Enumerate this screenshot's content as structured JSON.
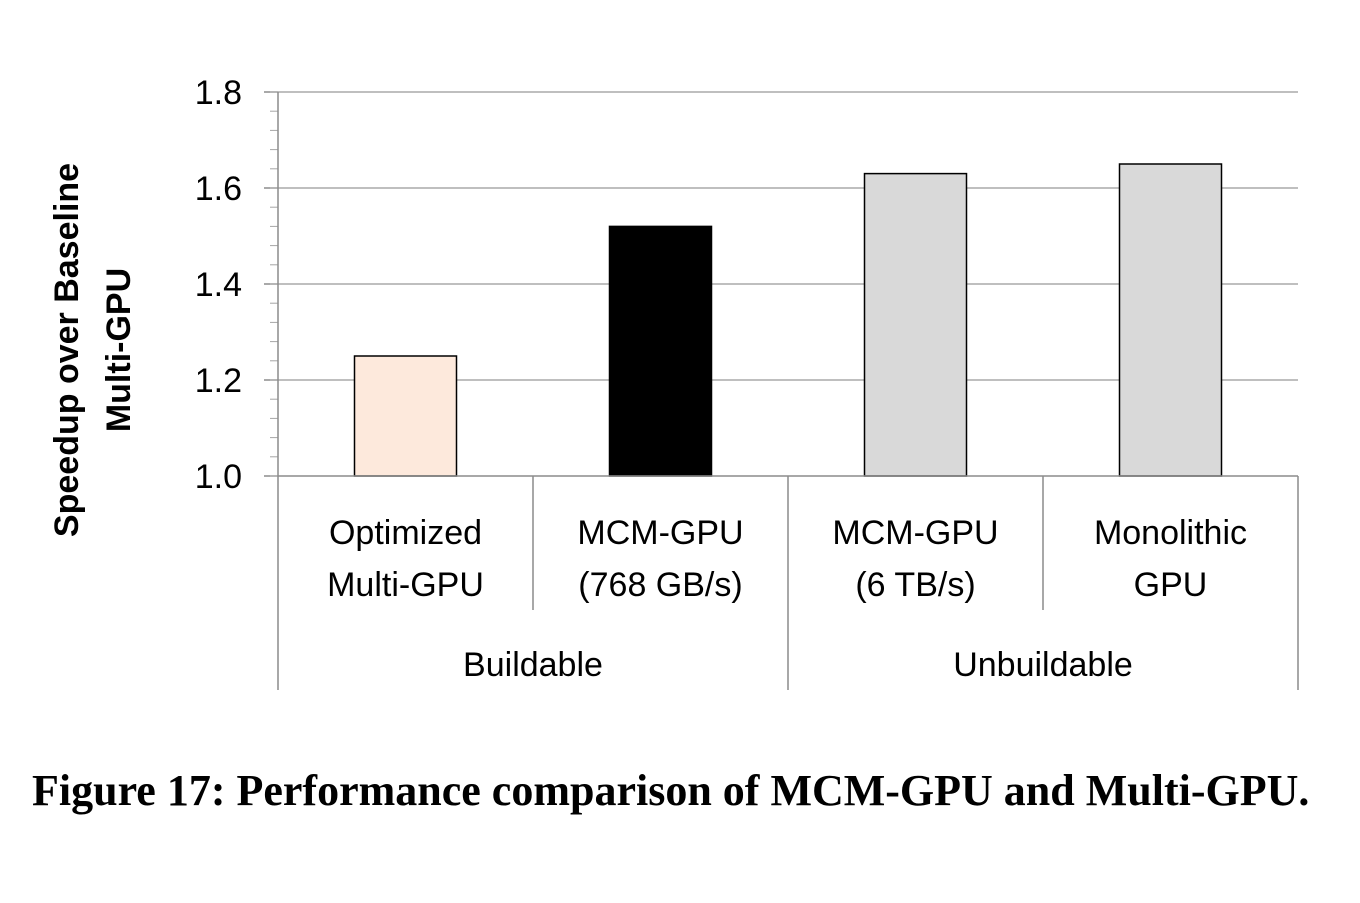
{
  "chart_data": {
    "type": "bar",
    "categories": [
      {
        "line1": "Optimized",
        "line2": "Multi-GPU"
      },
      {
        "line1": "MCM-GPU",
        "line2": "(768 GB/s)"
      },
      {
        "line1": "MCM-GPU",
        "line2": "(6 TB/s)"
      },
      {
        "line1": "Monolithic",
        "line2": "GPU"
      }
    ],
    "values": [
      1.25,
      1.52,
      1.63,
      1.65
    ],
    "colors": [
      "#fde9dc",
      "#000000",
      "#d9d9d9",
      "#d9d9d9"
    ],
    "groups": [
      {
        "label": "Buildable",
        "count": 2
      },
      {
        "label": "Unbuildable",
        "count": 2
      }
    ],
    "ylabel_line1": "Speedup over Baseline",
    "ylabel_line2": "Multi-GPU",
    "ylim": [
      1.0,
      1.8
    ],
    "yticks": [
      "1.0",
      "1.2",
      "1.4",
      "1.6",
      "1.8"
    ],
    "minor_tick_step": 0.04,
    "grid": true
  },
  "caption": "Figure 17: Performance comparison of MCM-GPU and Multi-GPU."
}
